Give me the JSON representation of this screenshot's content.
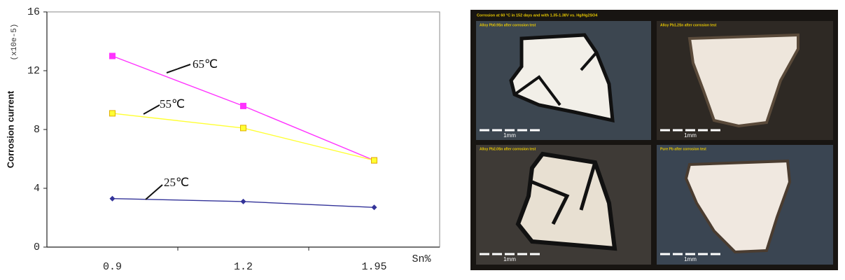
{
  "chart_data": {
    "type": "line",
    "ylabel": "Corrosion current",
    "yunit": "(x10e-5)",
    "xlabel": "Sn%",
    "categories": [
      "0.9",
      "1.2",
      "1.95"
    ],
    "series": [
      {
        "name": "65℃",
        "color": "#ff33ff",
        "marker": "square",
        "values": [
          13,
          9.6,
          5.9
        ]
      },
      {
        "name": "55℃",
        "color": "#ffff33",
        "marker": "square",
        "values": [
          9.1,
          8.1,
          5.9
        ]
      },
      {
        "name": "25℃",
        "color": "#333399",
        "marker": "diamond",
        "values": [
          3.3,
          3.1,
          2.7
        ]
      }
    ],
    "ylim": [
      0,
      16
    ],
    "yticks": [
      0,
      4,
      8,
      12,
      16
    ],
    "grid": false
  },
  "micrograph": {
    "title": "Corrosion at 60 °C in 152 days and with 1.35-1.38V vs. Hg/Hg2SO4",
    "panels": [
      {
        "label": "Alloy Pb0.9Sn after corrosion test",
        "scale": "1mm"
      },
      {
        "label": "Alloy Pb1.2Sn after corrosion test",
        "scale": "1mm"
      },
      {
        "label": "Alloy Pb2.0Sn after corrosion test",
        "scale": "1mm"
      },
      {
        "label": "Pure Pb after corrosion test",
        "scale": "1mm"
      }
    ]
  }
}
